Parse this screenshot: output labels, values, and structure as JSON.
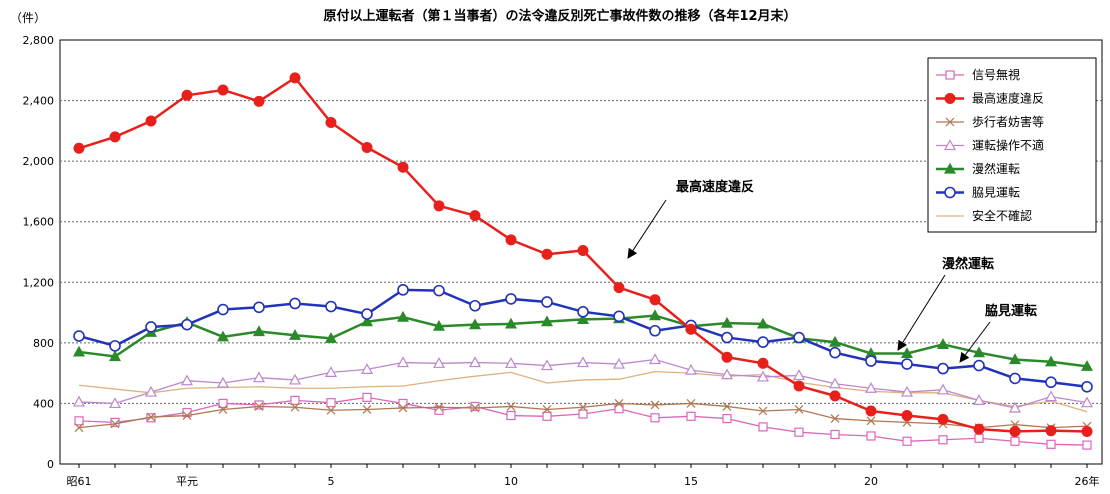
{
  "chart_data": {
    "type": "line",
    "title": "原付以上運転者（第１当事者）の法令違反別死亡事故件数の推移（各年12月末）",
    "unit_label": "（件）",
    "ylim": [
      0,
      2800
    ],
    "yticks": [
      0,
      400,
      800,
      1200,
      1600,
      2000,
      2400,
      2800
    ],
    "ytick_labels": [
      "0",
      "400",
      "800",
      "1,200",
      "1,600",
      "2,000",
      "2,400",
      "2,800"
    ],
    "x_labels": [
      {
        "index": 0,
        "label": "昭61"
      },
      {
        "index": 3,
        "label": "平元"
      },
      {
        "index": 7,
        "label": "5"
      },
      {
        "index": 12,
        "label": "10"
      },
      {
        "index": 17,
        "label": "15"
      },
      {
        "index": 22,
        "label": "20"
      },
      {
        "index": 28,
        "label": "26年"
      }
    ],
    "grid": true,
    "legend_position": "top-right",
    "series": [
      {
        "name": "信号無視",
        "color": "#dd66bb",
        "marker": "square",
        "values": [
          285,
          275,
          305,
          340,
          400,
          390,
          420,
          405,
          440,
          400,
          355,
          380,
          320,
          315,
          330,
          365,
          305,
          315,
          300,
          245,
          210,
          195,
          185,
          150,
          160,
          170,
          150,
          130,
          125
        ]
      },
      {
        "name": "最高速度違反",
        "color": "#e8201c",
        "marker": "circle-filled",
        "values": [
          2085,
          2160,
          2265,
          2435,
          2470,
          2395,
          2550,
          2255,
          2090,
          1960,
          1705,
          1640,
          1480,
          1385,
          1410,
          1165,
          1085,
          890,
          705,
          665,
          515,
          450,
          350,
          320,
          295,
          230,
          215,
          220,
          215
        ]
      },
      {
        "name": "歩行者妨害等",
        "color": "#b07850",
        "marker": "x",
        "values": [
          240,
          265,
          310,
          320,
          360,
          380,
          375,
          355,
          360,
          370,
          375,
          370,
          380,
          360,
          375,
          400,
          390,
          400,
          380,
          350,
          360,
          300,
          285,
          275,
          265,
          240,
          260,
          240,
          250
        ]
      },
      {
        "name": "運転操作不適",
        "color": "#bb88cc",
        "marker": "triangle-open",
        "values": [
          410,
          400,
          475,
          550,
          535,
          570,
          555,
          605,
          625,
          670,
          665,
          670,
          665,
          650,
          670,
          660,
          690,
          620,
          590,
          575,
          585,
          530,
          500,
          475,
          490,
          420,
          370,
          445,
          405
        ]
      },
      {
        "name": "漫然運転",
        "color": "#2a8a2a",
        "marker": "triangle-filled",
        "values": [
          740,
          710,
          870,
          935,
          840,
          875,
          850,
          830,
          940,
          970,
          910,
          920,
          925,
          940,
          955,
          960,
          980,
          910,
          930,
          925,
          830,
          805,
          730,
          730,
          790,
          735,
          690,
          675,
          645
        ]
      },
      {
        "name": "脇見運転",
        "color": "#2233bb",
        "marker": "circle-open",
        "values": [
          845,
          780,
          905,
          920,
          1020,
          1035,
          1060,
          1040,
          990,
          1150,
          1145,
          1045,
          1090,
          1070,
          1005,
          975,
          880,
          915,
          835,
          805,
          835,
          735,
          680,
          660,
          630,
          650,
          565,
          540,
          510
        ]
      },
      {
        "name": "安全不確認",
        "color": "#e0b080",
        "marker": "none",
        "values": [
          520,
          495,
          470,
          500,
          505,
          510,
          500,
          500,
          510,
          515,
          550,
          580,
          605,
          535,
          555,
          560,
          610,
          600,
          580,
          590,
          540,
          505,
          480,
          470,
          470,
          420,
          380,
          415,
          345
        ]
      }
    ],
    "annotations": [
      {
        "text": "最高速度違反",
        "target_index": 15,
        "target_series": 1
      },
      {
        "text": "漫然運転",
        "target_index": 21,
        "target_series": 4
      },
      {
        "text": "脇見運転",
        "target_index": 24,
        "target_series": 5
      }
    ]
  }
}
